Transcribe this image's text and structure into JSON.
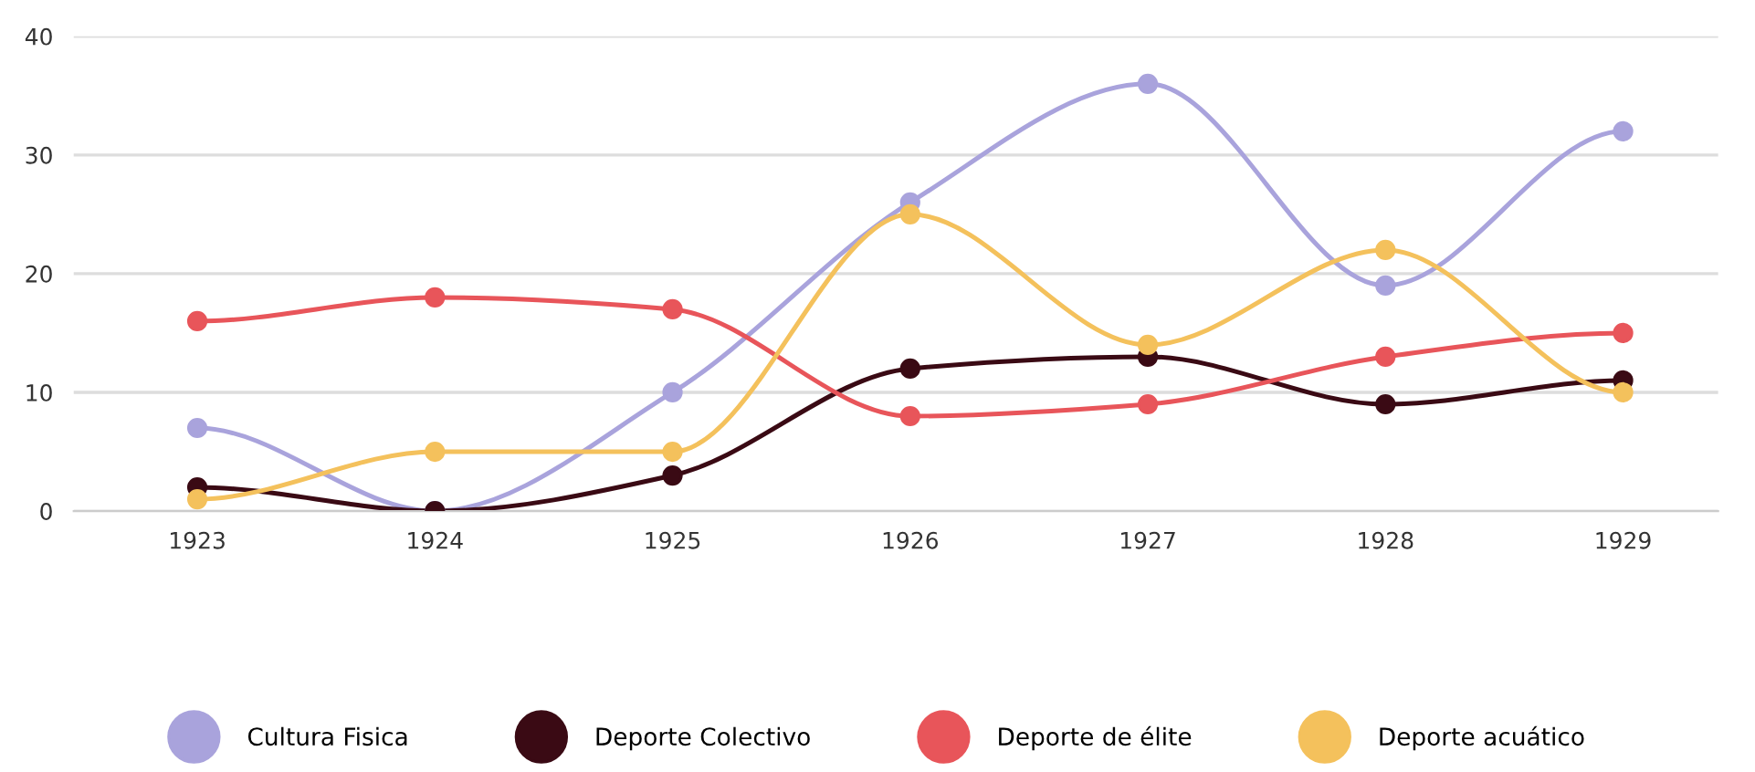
{
  "chart_data": {
    "type": "line",
    "categories": [
      "1923",
      "1924",
      "1925",
      "1926",
      "1927",
      "1928",
      "1929"
    ],
    "series": [
      {
        "name": "Cultura Fisica",
        "color": "#a9a3dc",
        "values": [
          7,
          0,
          10,
          26,
          36,
          19,
          32
        ]
      },
      {
        "name": "Deporte Colectivo",
        "color": "#3a0a14",
        "values": [
          2,
          0,
          3,
          12,
          13,
          9,
          11
        ]
      },
      {
        "name": "Deporte de élite",
        "color": "#e8555a",
        "values": [
          16,
          18,
          17,
          8,
          9,
          13,
          15
        ]
      },
      {
        "name": "Deporte acuático",
        "color": "#f4c15c",
        "values": [
          1,
          5,
          5,
          25,
          14,
          22,
          10
        ]
      }
    ],
    "ylim": [
      0,
      40
    ],
    "yticks": [
      0,
      10,
      20,
      30,
      40
    ],
    "grid": "y",
    "legend": "bottom",
    "marker": "circle",
    "line_style": "solid"
  }
}
